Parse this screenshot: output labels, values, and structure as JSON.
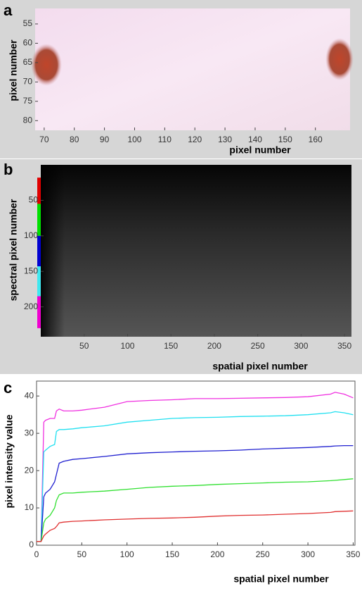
{
  "chart_data": [
    {
      "type": "image",
      "label": "a",
      "xlabel": "pixel number",
      "ylabel": "pixel number",
      "xlim": [
        67,
        171.5
      ],
      "ylim": [
        51,
        82.5
      ],
      "y_reversed": true,
      "xticks": [
        70,
        80,
        90,
        100,
        110,
        120,
        130,
        140,
        150,
        160
      ],
      "yticks": [
        55,
        60,
        65,
        70,
        75,
        80
      ]
    },
    {
      "type": "image",
      "label": "b",
      "xlabel": "spatial pixel number",
      "ylabel": "spectral pixel number",
      "xlim": [
        0,
        358
      ],
      "ylim": [
        0,
        242
      ],
      "y_reversed": true,
      "xticks": [
        50,
        100,
        150,
        200,
        250,
        300,
        350
      ],
      "yticks": [
        50,
        100,
        150,
        200
      ],
      "bands": [
        {
          "color": "#e00000",
          "range": [
            18,
            55
          ]
        },
        {
          "color": "#00e000",
          "range": [
            55,
            100
          ]
        },
        {
          "color": "#0000d0",
          "range": [
            100,
            143
          ]
        },
        {
          "color": "#40e8f0",
          "range": [
            143,
            185
          ]
        },
        {
          "color": "#f000d0",
          "range": [
            185,
            230
          ]
        }
      ]
    },
    {
      "type": "line",
      "label": "c",
      "xlabel": "spatial pixel number",
      "ylabel": "pixel intensity value",
      "xlim": [
        0,
        352
      ],
      "ylim": [
        0,
        44
      ],
      "xticks": [
        0,
        50,
        100,
        150,
        200,
        250,
        300,
        350
      ],
      "yticks": [
        0,
        10,
        20,
        30,
        40
      ],
      "x": [
        0,
        5,
        8,
        10,
        15,
        20,
        22,
        25,
        30,
        40,
        50,
        75,
        100,
        125,
        150,
        175,
        200,
        225,
        250,
        275,
        300,
        325,
        330,
        340,
        350
      ],
      "series": [
        {
          "color": "#f030e0",
          "values": [
            1,
            1,
            33,
            33.5,
            34,
            34,
            36,
            36.5,
            36,
            36,
            36.2,
            37,
            38.5,
            38.8,
            39,
            39.3,
            39.3,
            39.4,
            39.5,
            39.6,
            39.8,
            40.5,
            41,
            40.5,
            39.5
          ]
        },
        {
          "color": "#20e0f0",
          "values": [
            1,
            1,
            25,
            25.5,
            26.5,
            27,
            30.5,
            31,
            31,
            31.2,
            31.5,
            32,
            33,
            33.5,
            34,
            34.2,
            34.3,
            34.5,
            34.6,
            34.7,
            35,
            35.5,
            35.8,
            35.5,
            35
          ]
        },
        {
          "color": "#2020d0",
          "values": [
            1,
            1,
            13,
            14,
            15,
            17,
            19,
            22,
            22.5,
            23,
            23.2,
            23.8,
            24.5,
            24.8,
            25,
            25.2,
            25.3,
            25.5,
            25.8,
            26,
            26.2,
            26.5,
            26.6,
            26.7,
            26.7
          ]
        },
        {
          "color": "#30e030",
          "values": [
            1,
            1,
            6,
            7,
            8,
            10,
            12,
            13.5,
            14,
            14,
            14.2,
            14.5,
            15,
            15.5,
            15.8,
            16,
            16.3,
            16.5,
            16.7,
            16.9,
            17,
            17.3,
            17.4,
            17.6,
            17.8
          ]
        },
        {
          "color": "#e03030",
          "values": [
            1,
            1,
            2.5,
            3,
            4,
            4.5,
            5,
            6,
            6.2,
            6.4,
            6.5,
            6.8,
            7,
            7.2,
            7.3,
            7.5,
            7.8,
            8,
            8.1,
            8.3,
            8.5,
            8.8,
            9,
            9.1,
            9.2
          ]
        }
      ]
    }
  ]
}
